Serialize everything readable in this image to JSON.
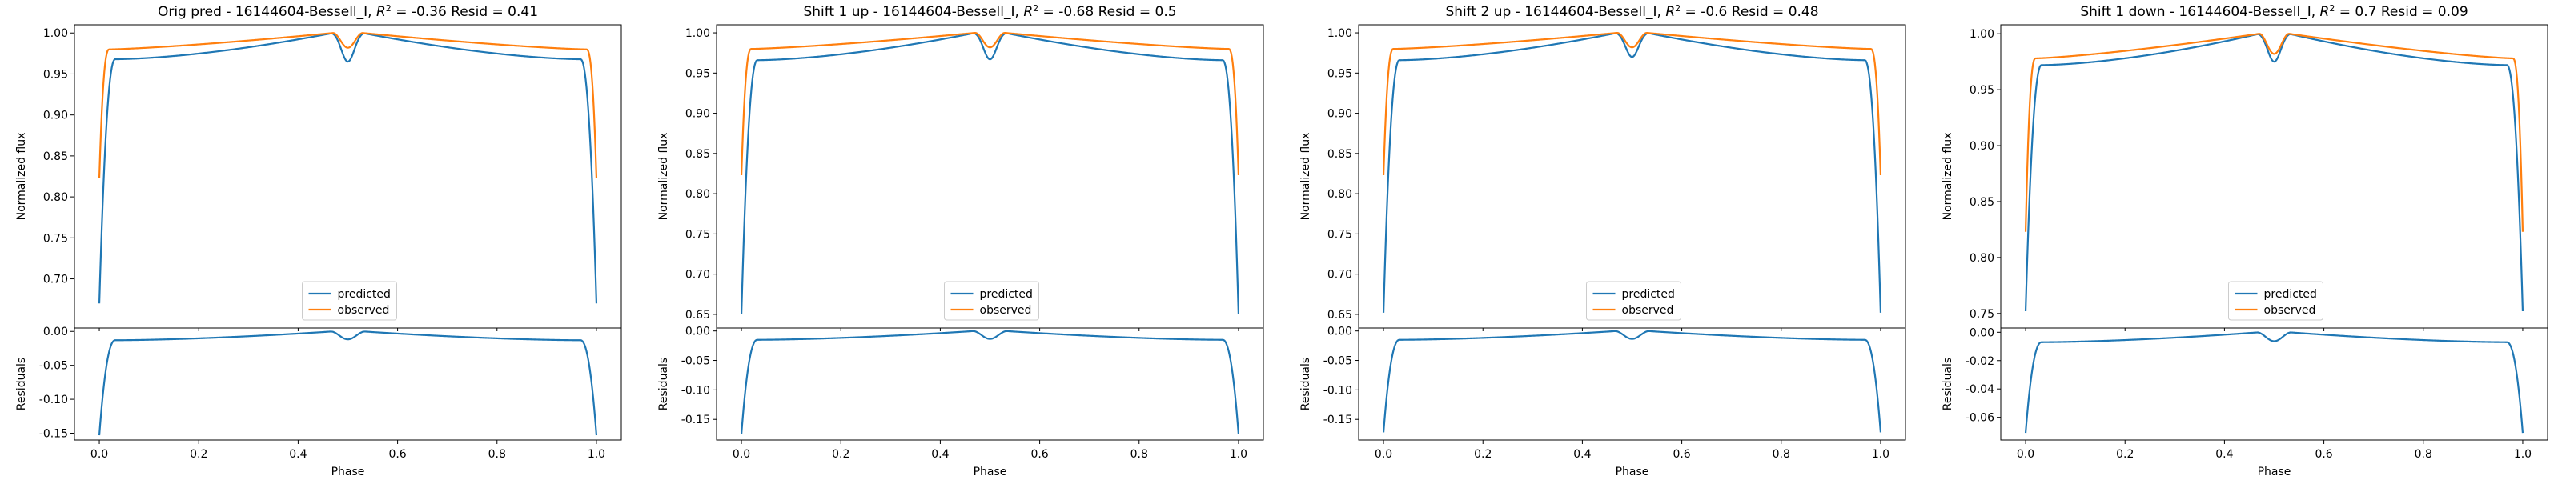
{
  "colors": {
    "predicted": "#1f77b4",
    "observed": "#ff7f0e",
    "axes": "#000000"
  },
  "chart_data": [
    {
      "type": "line",
      "title": "Orig pred - 16144604-Bessell_I, $R^2$ = -0.36 Resid = 0.41",
      "title_parts": [
        "Orig pred - 16144604-Bessell_I, ",
        "R",
        "2",
        " = -0.36 Resid = 0.41"
      ],
      "top": {
        "ylabel": "Normalized flux",
        "ylim": [
          0.64,
          1.01
        ],
        "yticks": [
          "0.70",
          "0.75",
          "0.80",
          "0.85",
          "0.90",
          "0.95",
          "1.00"
        ],
        "pred_base": 0.67,
        "pred_plateau": 0.968,
        "pred_dip": 0.965,
        "obs_base": 0.823,
        "obs_plateau": 0.98
      },
      "resid": {
        "ylabel": "Residuals",
        "ylim": [
          -0.16,
          0.005
        ],
        "yticks": [
          "0.00",
          "-0.05",
          "-0.10",
          "-0.15"
        ],
        "min": -0.153,
        "plateau": -0.013
      },
      "xlabel": "Phase",
      "xticks": [
        "0.0",
        "0.2",
        "0.4",
        "0.6",
        "0.8",
        "1.0"
      ],
      "xlim": [
        -0.05,
        1.05
      ],
      "legend": [
        "predicted",
        "observed"
      ]
    },
    {
      "type": "line",
      "title": "Shift 1 up - 16144604-Bessell_I, $R^2$ = -0.68 Resid = 0.5",
      "title_parts": [
        "Shift 1 up - 16144604-Bessell_I, ",
        "R",
        "2",
        " = -0.68 Resid = 0.5"
      ],
      "top": {
        "ylabel": "Normalized flux",
        "ylim": [
          0.633,
          1.01
        ],
        "yticks": [
          "0.65",
          "0.70",
          "0.75",
          "0.80",
          "0.85",
          "0.90",
          "0.95",
          "1.00"
        ],
        "pred_base": 0.65,
        "pred_plateau": 0.966,
        "pred_dip": 0.967,
        "obs_base": 0.823,
        "obs_plateau": 0.98
      },
      "resid": {
        "ylabel": "Residuals",
        "ylim": [
          -0.185,
          0.005
        ],
        "yticks": [
          "0.00",
          "-0.05",
          "-0.10",
          "-0.15"
        ],
        "min": -0.175,
        "plateau": -0.015
      },
      "xlabel": "Phase",
      "xticks": [
        "0.0",
        "0.2",
        "0.4",
        "0.6",
        "0.8",
        "1.0"
      ],
      "xlim": [
        -0.05,
        1.05
      ],
      "legend": [
        "predicted",
        "observed"
      ]
    },
    {
      "type": "line",
      "title": "Shift 2 up - 16144604-Bessell_I, $R^2$ = -0.6 Resid = 0.48",
      "title_parts": [
        "Shift 2 up - 16144604-Bessell_I, ",
        "R",
        "2",
        " = -0.6 Resid = 0.48"
      ],
      "top": {
        "ylabel": "Normalized flux",
        "ylim": [
          0.633,
          1.01
        ],
        "yticks": [
          "0.65",
          "0.70",
          "0.75",
          "0.80",
          "0.85",
          "0.90",
          "0.95",
          "1.00"
        ],
        "pred_base": 0.652,
        "pred_plateau": 0.966,
        "pred_dip": 0.97,
        "obs_base": 0.823,
        "obs_plateau": 0.98
      },
      "resid": {
        "ylabel": "Residuals",
        "ylim": [
          -0.185,
          0.005
        ],
        "yticks": [
          "0.00",
          "-0.05",
          "-0.10",
          "-0.15"
        ],
        "min": -0.172,
        "plateau": -0.015
      },
      "xlabel": "Phase",
      "xticks": [
        "0.0",
        "0.2",
        "0.4",
        "0.6",
        "0.8",
        "1.0"
      ],
      "xlim": [
        -0.05,
        1.05
      ],
      "legend": [
        "predicted",
        "observed"
      ]
    },
    {
      "type": "line",
      "title": "Shift 1 down - 16144604-Bessell_I, $R^2$ = 0.7 Resid = 0.09",
      "title_parts": [
        "Shift 1 down - 16144604-Bessell_I, ",
        "R",
        "2",
        " = 0.7 Resid = 0.09"
      ],
      "top": {
        "ylabel": "Normalized flux",
        "ylim": [
          0.737,
          1.008
        ],
        "yticks": [
          "0.75",
          "0.80",
          "0.85",
          "0.90",
          "0.95",
          "1.00"
        ],
        "pred_base": 0.752,
        "pred_plateau": 0.972,
        "pred_dip": 0.975,
        "obs_base": 0.823,
        "obs_plateau": 0.978
      },
      "resid": {
        "ylabel": "Residuals",
        "ylim": [
          -0.076,
          0.003
        ],
        "yticks": [
          "0.00",
          "-0.02",
          "-0.04",
          "-0.06"
        ],
        "min": -0.071,
        "plateau": -0.007
      },
      "xlabel": "Phase",
      "xticks": [
        "0.0",
        "0.2",
        "0.4",
        "0.6",
        "0.8",
        "1.0"
      ],
      "xlim": [
        -0.05,
        1.05
      ],
      "legend": [
        "predicted",
        "observed"
      ]
    }
  ]
}
